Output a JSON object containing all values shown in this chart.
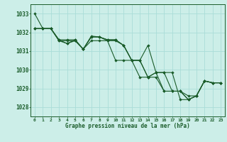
{
  "title": "Graphe pression niveau de la mer (hPa)",
  "background_color": "#cceee8",
  "grid_color": "#aaddd8",
  "line_color": "#1a5c2a",
  "marker_color": "#1a5c2a",
  "xlim": [
    -0.5,
    23.5
  ],
  "ylim": [
    1027.5,
    1033.5
  ],
  "yticks": [
    1028,
    1029,
    1030,
    1031,
    1032,
    1033
  ],
  "xticks": [
    0,
    1,
    2,
    3,
    4,
    5,
    6,
    7,
    8,
    9,
    10,
    11,
    12,
    13,
    14,
    15,
    16,
    17,
    18,
    19,
    20,
    21,
    22,
    23
  ],
  "xtick_labels": [
    "0",
    "1",
    "2",
    "3",
    "4",
    "5",
    "6",
    "7",
    "8",
    "9",
    "10",
    "11",
    "12",
    "13",
    "14",
    "15",
    "16",
    "17",
    "18",
    "19",
    "20",
    "21",
    "22",
    "23"
  ],
  "lines": [
    [
      1033.0,
      1032.2,
      null,
      1031.6,
      1031.4,
      1031.6,
      1031.1,
      1031.8,
      1031.75,
      1031.6,
      null,
      null,
      null,
      null,
      1031.3,
      1029.85,
      null,
      null,
      1028.4,
      null,
      null,
      1029.4,
      1029.3,
      1029.3
    ],
    [
      null,
      1032.2,
      1032.2,
      1031.55,
      1031.55,
      1031.55,
      1031.1,
      1031.75,
      1031.75,
      1031.55,
      1031.55,
      1031.3,
      1030.5,
      1030.5,
      1029.6,
      1029.6,
      1028.85,
      1028.85,
      1028.85,
      1028.4,
      1028.6,
      1029.4,
      1029.3,
      1029.3
    ],
    [
      null,
      1032.2,
      null,
      1031.6,
      1031.6,
      1031.6,
      1031.1,
      1031.75,
      1031.75,
      1031.6,
      1031.6,
      1031.3,
      1030.5,
      1030.5,
      1029.6,
      1029.85,
      1029.85,
      1028.85,
      1028.85,
      1028.4,
      1028.6,
      null,
      1029.3,
      1029.3
    ],
    [
      null,
      null,
      1032.2,
      1031.55,
      1031.4,
      1031.55,
      1031.1,
      null,
      null,
      null,
      1030.5,
      1030.5,
      null,
      1029.6,
      1029.6,
      1029.85,
      1028.85,
      1028.85,
      1028.85,
      1028.6,
      1028.6,
      1029.4,
      null,
      1029.3
    ]
  ],
  "lines_v2": [
    [
      1033.0,
      1032.2,
      1032.2,
      1031.6,
      1031.4,
      1031.6,
      1031.1,
      1031.8,
      1031.75,
      1031.6,
      1031.6,
      1031.3,
      1030.5,
      1030.5,
      1031.3,
      1029.85,
      1029.85,
      1029.85,
      1028.4,
      1028.4,
      1028.6,
      1029.4,
      1029.3,
      1029.3
    ],
    [
      1032.2,
      1032.2,
      1032.2,
      1031.55,
      1031.55,
      1031.55,
      1031.1,
      1031.75,
      1031.75,
      1031.55,
      1031.55,
      1031.3,
      1030.5,
      1030.5,
      1029.6,
      1029.6,
      1028.85,
      1028.85,
      1028.85,
      1028.4,
      1028.6,
      1029.4,
      1029.3,
      1029.3
    ],
    [
      1032.2,
      1032.2,
      1032.2,
      1031.6,
      1031.6,
      1031.6,
      1031.1,
      1031.75,
      1031.75,
      1031.6,
      1031.6,
      1031.3,
      1030.5,
      1030.5,
      1029.6,
      1029.85,
      1029.85,
      1028.85,
      1028.85,
      1028.4,
      1028.6,
      1029.4,
      1029.3,
      1029.3
    ],
    [
      1032.2,
      1032.2,
      1032.2,
      1031.55,
      1031.4,
      1031.55,
      1031.1,
      1031.55,
      1031.55,
      1031.55,
      1030.5,
      1030.5,
      1030.5,
      1029.6,
      1029.6,
      1029.85,
      1028.85,
      1028.85,
      1028.85,
      1028.6,
      1028.6,
      1029.4,
      1029.3,
      1029.3
    ]
  ]
}
